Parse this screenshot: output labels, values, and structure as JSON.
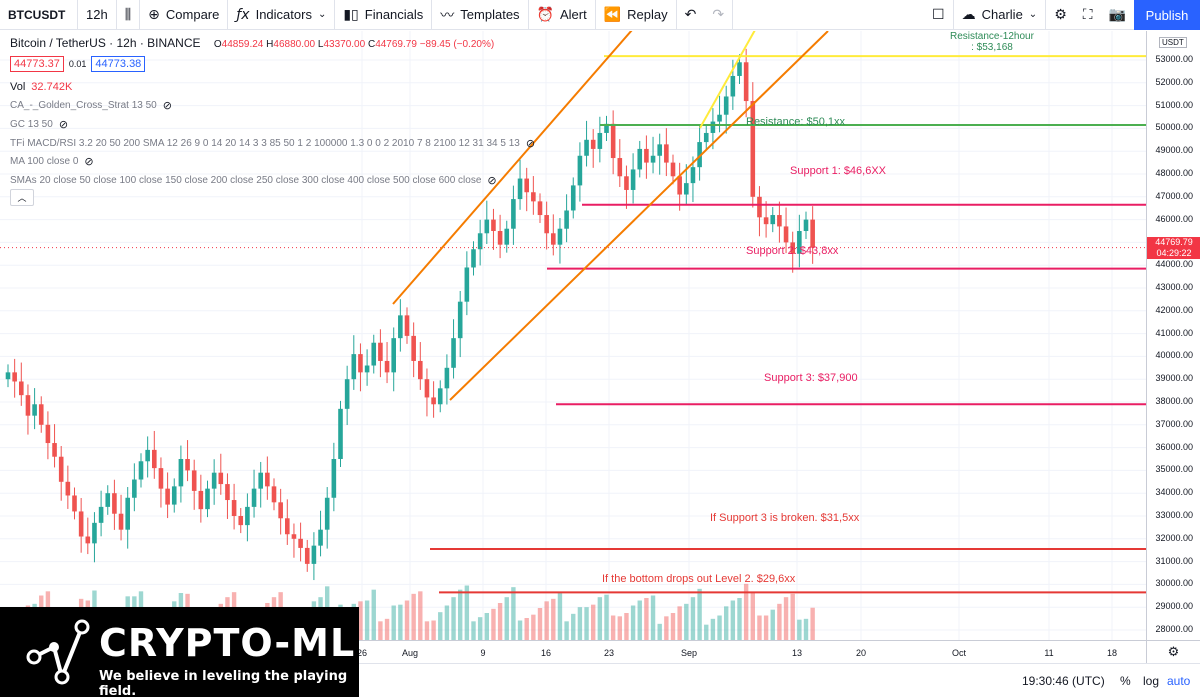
{
  "toolbar": {
    "symbol": "BTCUSDT",
    "interval": "12h",
    "compare_label": "Compare",
    "indicators_label": "Indicators",
    "financials_label": "Financials",
    "templates_label": "Templates",
    "alert_label": "Alert",
    "replay_label": "Replay",
    "layout_name": "Charlie",
    "publish_label": "Publish"
  },
  "legend": {
    "title": "Bitcoin / TetherUS · 12h · BINANCE",
    "open": "44859.24",
    "high": "46880.00",
    "low": "43370.00",
    "close": "44769.79",
    "change": "−89.45 (−0.20%)",
    "bid": "44773.37",
    "spread": "0.01",
    "ask": "44773.38",
    "volume_label": "Vol",
    "volume_value": "32.742K",
    "indicators": [
      "CA_-_Golden_Cross_Strat 13 50",
      "GC 13 50",
      "TFi MACD/RSI 3.2 20 50 200 SMA 12 26 9 0 14 20 14 3 3 85 50 1 2 100000 1.3 0 0 2 2010 7 8 2100 12 31 34 5 13",
      "MA 100 close 0",
      "SMAs 20 close 50 close 100 close 150 close 200 close 250 close 300 close 400 close 500 close 600 close"
    ]
  },
  "annotations": {
    "resistance_12h_line1": "Resistance-12hour",
    "resistance_12h_line2": ": $53,168",
    "resistance": "Resistance:  $50,1xx",
    "support1": "Support 1:   $46,6XX",
    "support2": "Support 2:  $43,8xx",
    "support3": "Support 3:  $37,900",
    "if_broken": "If Support 3 is broken. $31,5xx",
    "bottom_drops": "If the bottom drops out Level 2. $29,6xx"
  },
  "price_scale": {
    "unit": "USDT",
    "current_price": "44769.79",
    "countdown": "04:29:22"
  },
  "bottom_bar": {
    "clock": "19:30:46 (UTC)",
    "percent": "%",
    "log": "log",
    "auto": "auto"
  },
  "watermark": {
    "name": "CRYPTO-ML",
    "tagline": "We believe in leveling the playing field."
  },
  "colors": {
    "up": "#26a69a",
    "down": "#ef5350",
    "support_line": "#e91e63",
    "resistance_line": "#4caf50",
    "channel": "#f57c00",
    "resistance_12h": "#ffeb3b",
    "warning_line": "#e53935"
  },
  "chart_data": {
    "type": "candlestick",
    "symbol": "BTCUSDT",
    "interval": "12h",
    "y_range": [
      27500,
      54500
    ],
    "y_ticks": [
      28000,
      29000,
      30000,
      31000,
      32000,
      33000,
      34000,
      35000,
      36000,
      37000,
      38000,
      39000,
      40000,
      41000,
      42000,
      43000,
      44000,
      45000,
      46000,
      47000,
      48000,
      49000,
      50000,
      51000,
      52000,
      53000
    ],
    "x_tick_labels": [
      "26",
      "Aug",
      "9",
      "16",
      "23",
      "Sep",
      "13",
      "20",
      "Oct",
      "11",
      "18"
    ],
    "levels": [
      {
        "label": "Resistance-12hour",
        "price": 53168
      },
      {
        "label": "Resistance",
        "price": 50150
      },
      {
        "label": "Support 1",
        "price": 46650
      },
      {
        "label": "Support 2",
        "price": 43850
      },
      {
        "label": "Support 3",
        "price": 37900
      },
      {
        "label": "If Support 3 is broken",
        "price": 31550
      },
      {
        "label": "If the bottom drops out Level 2",
        "price": 29650
      }
    ],
    "closes": [
      39300,
      38900,
      38300,
      37400,
      37900,
      37000,
      36200,
      35600,
      34500,
      33900,
      33200,
      32100,
      31800,
      32700,
      33400,
      34000,
      33100,
      32400,
      33800,
      34600,
      35400,
      35900,
      35100,
      34200,
      33500,
      34300,
      35500,
      35000,
      34100,
      33300,
      34200,
      34900,
      34400,
      33700,
      33000,
      32600,
      33400,
      34200,
      34900,
      34300,
      33600,
      32900,
      32200,
      32000,
      31600,
      30900,
      31700,
      32400,
      33800,
      35500,
      37700,
      39000,
      40100,
      39300,
      39600,
      40600,
      39800,
      39300,
      40800,
      41800,
      40900,
      39800,
      39000,
      38200,
      37900,
      38600,
      39500,
      40800,
      42400,
      43900,
      44700,
      45400,
      46000,
      45500,
      44900,
      45600,
      46900,
      47800,
      47200,
      46800,
      46200,
      45400,
      44900,
      45600,
      46400,
      47500,
      48800,
      49500,
      49100,
      49800,
      50200,
      48700,
      47900,
      47300,
      48200,
      49100,
      48500,
      48800,
      49300,
      48500,
      47900,
      47100,
      47600,
      48300,
      49400,
      49800,
      50300,
      50600,
      51400,
      52300,
      52900,
      51200,
      47000,
      46100,
      45800,
      46200,
      45700,
      45000,
      44500,
      45500,
      46000,
      44769
    ]
  }
}
